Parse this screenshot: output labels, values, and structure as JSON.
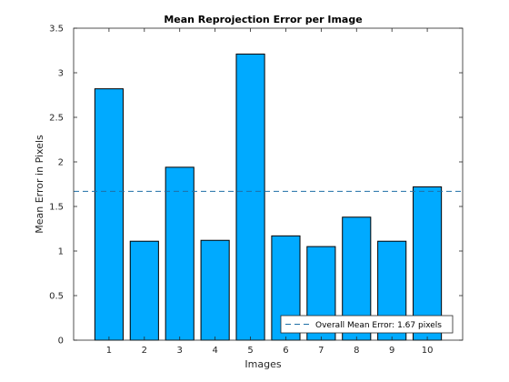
{
  "chart_data": {
    "type": "bar",
    "title": "Mean Reprojection Error per Image",
    "xlabel": "Images",
    "ylabel": "Mean Error in Pixels",
    "categories": [
      "1",
      "2",
      "3",
      "4",
      "5",
      "6",
      "7",
      "8",
      "9",
      "10"
    ],
    "values": [
      2.82,
      1.11,
      1.94,
      1.12,
      3.21,
      1.17,
      1.05,
      1.38,
      1.11,
      1.72
    ],
    "ylim": [
      0,
      3.5
    ],
    "xlim": [
      0,
      11
    ],
    "yticks": [
      0,
      0.5,
      1,
      1.5,
      2,
      2.5,
      3,
      3.5
    ],
    "ytick_labels": [
      "0",
      "0.5",
      "1",
      "1.5",
      "2",
      "2.5",
      "3",
      "3.5"
    ],
    "reference_line": {
      "value": 1.67,
      "style": "dashed",
      "color": "#1f6fa6"
    },
    "legend": {
      "label": "Overall Mean Error: 1.67 pixels",
      "placement": "bottom-right"
    },
    "bar_color": "#00aaff",
    "bar_edge_color": "#000000",
    "grid": false
  }
}
